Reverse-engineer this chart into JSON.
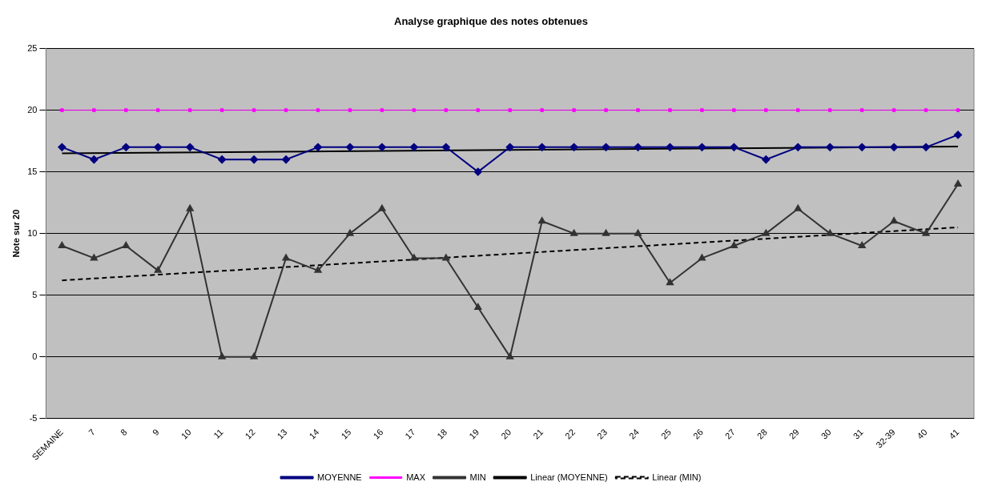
{
  "chart_data": {
    "type": "line",
    "title": "Analyse graphique des notes obtenues",
    "ylabel": "Note sur 20",
    "categories": [
      "SEMAINE",
      "7",
      "8",
      "9",
      "10",
      "11",
      "12",
      "13",
      "14",
      "15",
      "16",
      "17",
      "18",
      "19",
      "20",
      "21",
      "22",
      "23",
      "24",
      "25",
      "26",
      "27",
      "28",
      "29",
      "30",
      "31",
      "32-39",
      "40",
      "41"
    ],
    "series": [
      {
        "name": "MOYENNE",
        "color": "#000080",
        "marker": "diamond",
        "values": [
          17,
          16,
          17,
          17,
          17,
          16,
          16,
          16,
          17,
          17,
          17,
          17,
          17,
          15,
          17,
          17,
          17,
          17,
          17,
          17,
          17,
          17,
          16,
          17,
          17,
          17,
          17,
          17,
          18
        ]
      },
      {
        "name": "MAX",
        "color": "#ff00ff",
        "marker": "square",
        "values": [
          20,
          20,
          20,
          20,
          20,
          20,
          20,
          20,
          20,
          20,
          20,
          20,
          20,
          20,
          20,
          20,
          20,
          20,
          20,
          20,
          20,
          20,
          20,
          20,
          20,
          20,
          20,
          20,
          20
        ]
      },
      {
        "name": "MIN",
        "color": "#333333",
        "marker": "triangle",
        "values": [
          9,
          8,
          9,
          7,
          12,
          0,
          0,
          8,
          7,
          10,
          12,
          8,
          8,
          4,
          0,
          11,
          10,
          10,
          10,
          6,
          8,
          9,
          10,
          12,
          10,
          9,
          11,
          10,
          14
        ]
      },
      {
        "name": "Linear (MOYENNE)",
        "color": "#000000",
        "marker": "none",
        "line_style": "solid",
        "x": [
          "SEMAINE",
          "41"
        ],
        "values": [
          16.5,
          17.05
        ]
      },
      {
        "name": "Linear (MIN)",
        "color": "#000000",
        "marker": "none",
        "line_style": "dashed",
        "x": [
          "SEMAINE",
          "41"
        ],
        "values": [
          6.2,
          10.5
        ]
      }
    ],
    "ylim": [
      -5,
      25
    ],
    "yticks": [
      -5,
      0,
      5,
      10,
      15,
      20,
      25
    ],
    "grid": "y",
    "legend": "bottom"
  }
}
